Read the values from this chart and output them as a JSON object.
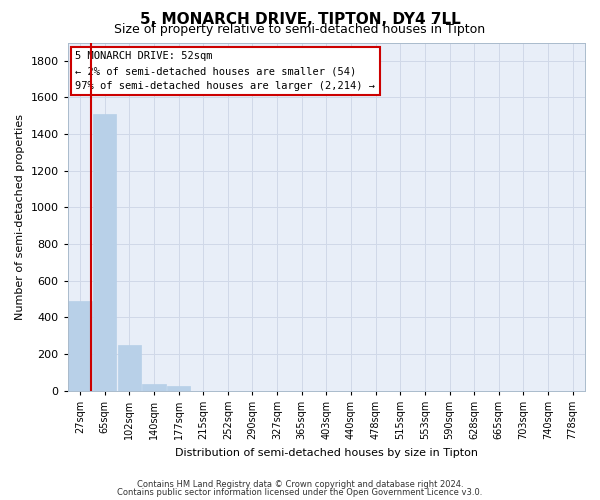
{
  "title": "5, MONARCH DRIVE, TIPTON, DY4 7LL",
  "subtitle": "Size of property relative to semi-detached houses in Tipton",
  "xlabel": "Distribution of semi-detached houses by size in Tipton",
  "ylabel": "Number of semi-detached properties",
  "bar_labels": [
    "27sqm",
    "65sqm",
    "102sqm",
    "140sqm",
    "177sqm",
    "215sqm",
    "252sqm",
    "290sqm",
    "327sqm",
    "365sqm",
    "403sqm",
    "440sqm",
    "478sqm",
    "515sqm",
    "553sqm",
    "590sqm",
    "628sqm",
    "665sqm",
    "703sqm",
    "740sqm",
    "778sqm"
  ],
  "bar_values": [
    490,
    1510,
    250,
    38,
    25,
    0,
    0,
    0,
    0,
    0,
    0,
    0,
    0,
    0,
    0,
    0,
    0,
    0,
    0,
    0,
    0
  ],
  "bar_color": "#b8d0e8",
  "bar_edge_color": "#b8d0e8",
  "ylim": [
    0,
    1900
  ],
  "yticks": [
    0,
    200,
    400,
    600,
    800,
    1000,
    1200,
    1400,
    1600,
    1800
  ],
  "annotation_title": "5 MONARCH DRIVE: 52sqm",
  "annotation_line1": "← 2% of semi-detached houses are smaller (54)",
  "annotation_line2": "97% of semi-detached houses are larger (2,214) →",
  "annotation_box_facecolor": "#ffffff",
  "annotation_box_edgecolor": "#cc0000",
  "footer1": "Contains HM Land Registry data © Crown copyright and database right 2024.",
  "footer2": "Contains public sector information licensed under the Open Government Licence v3.0.",
  "bg_color": "#e8eef8",
  "grid_color": "#d0d8e8",
  "title_fontsize": 11,
  "subtitle_fontsize": 9,
  "ylabel_fontsize": 8,
  "xlabel_fontsize": 8,
  "red_line_color": "#cc0000",
  "red_line_x": 0.44
}
